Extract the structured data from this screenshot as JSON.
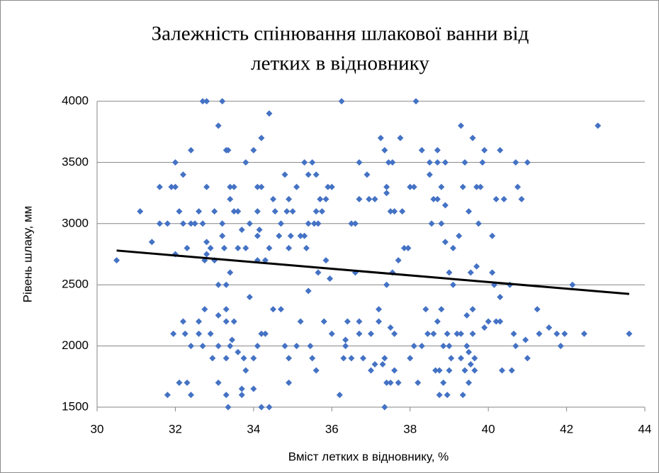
{
  "chart_data": {
    "type": "scatter",
    "title": [
      "Залежність спінювання шлакової ванни від",
      "летких в відновнику"
    ],
    "x_label": "Вміст летких в відновнику, %",
    "y_label": "Рівень шлаку, мм",
    "xlim": [
      30,
      44
    ],
    "xticks": [
      30,
      32,
      34,
      36,
      38,
      40,
      42,
      44
    ],
    "ylim": [
      1500,
      4000
    ],
    "yticks": [
      1500,
      2000,
      2500,
      3000,
      3500,
      4000
    ],
    "grid": true,
    "x": [
      30.5,
      31.1,
      31.4,
      31.6,
      31.6,
      31.8,
      31.8,
      31.9,
      32.0,
      32.0,
      31.95,
      32.0,
      32.1,
      32.1,
      32.2,
      32.2,
      32.3,
      32.2,
      32.25,
      32.3,
      32.4,
      32.4,
      32.4,
      32.4,
      32.5,
      32.6,
      32.6,
      32.6,
      32.7,
      32.7,
      32.75,
      32.8,
      32.7,
      32.8,
      32.8,
      32.8,
      32.75,
      32.9,
      32.9,
      33.0,
      32.95,
      33.0,
      33.1,
      33.1,
      33.1,
      33.1,
      33.1,
      33.2,
      33.2,
      33.2,
      33.25,
      33.3,
      33.3,
      33.3,
      33.35,
      33.4,
      33.4,
      33.3,
      33.4,
      33.4,
      33.45,
      33.5,
      33.35,
      33.3,
      33.3,
      33.5,
      33.5,
      33.6,
      33.6,
      33.6,
      33.7,
      33.7,
      33.7,
      33.75,
      33.8,
      33.8,
      33.8,
      33.9,
      33.9,
      34.0,
      34.0,
      34.0,
      34.1,
      34.1,
      34.1,
      34.1,
      34.15,
      34.1,
      34.2,
      34.2,
      34.2,
      34.2,
      34.3,
      34.3,
      34.4,
      34.4,
      34.4,
      34.5,
      34.5,
      34.55,
      34.7,
      34.65,
      34.7,
      34.8,
      34.8,
      34.9,
      34.9,
      34.85,
      34.95,
      34.9,
      34.9,
      35.0,
      35.1,
      35.1,
      35.2,
      35.2,
      35.3,
      35.3,
      35.35,
      35.4,
      35.4,
      35.4,
      35.5,
      35.45,
      35.55,
      35.5,
      35.6,
      35.65,
      35.6,
      35.7,
      35.65,
      35.6,
      35.75,
      35.8,
      35.85,
      35.9,
      36.0,
      35.85,
      35.95,
      36.0,
      36.2,
      36.25,
      36.3,
      36.35,
      36.35,
      36.4,
      36.5,
      36.5,
      36.6,
      36.6,
      36.7,
      36.7,
      36.7,
      36.7,
      36.8,
      36.9,
      36.95,
      37.0,
      37.0,
      37.1,
      37.2,
      37.2,
      37.1,
      37.25,
      37.3,
      37.35,
      37.35,
      37.35,
      37.4,
      37.4,
      37.4,
      37.4,
      37.45,
      37.5,
      37.5,
      37.5,
      37.55,
      37.55,
      37.6,
      37.6,
      37.6,
      37.7,
      37.75,
      37.7,
      37.8,
      37.85,
      37.95,
      38.0,
      38.0,
      38.1,
      38.1,
      38.15,
      38.2,
      38.3,
      38.3,
      38.4,
      38.45,
      38.5,
      38.5,
      38.55,
      38.6,
      38.6,
      38.65,
      38.7,
      38.7,
      38.7,
      38.7,
      38.75,
      38.75,
      38.8,
      38.8,
      38.8,
      38.85,
      38.85,
      38.9,
      38.9,
      38.9,
      38.95,
      39.0,
      38.95,
      39.0,
      39.0,
      39.05,
      39.1,
      39.1,
      39.2,
      39.25,
      39.3,
      39.3,
      39.3,
      39.35,
      39.35,
      39.4,
      39.4,
      39.45,
      39.45,
      39.5,
      39.5,
      39.5,
      39.55,
      39.55,
      39.6,
      39.6,
      39.6,
      39.65,
      39.65,
      39.7,
      39.7,
      39.75,
      39.8,
      39.85,
      39.9,
      39.9,
      40.0,
      40.1,
      40.1,
      40.15,
      40.2,
      40.2,
      40.3,
      40.3,
      40.3,
      40.35,
      40.4,
      40.55,
      40.6,
      40.65,
      40.7,
      40.7,
      40.75,
      40.85,
      40.95,
      41.0,
      41.0,
      41.25,
      41.3,
      41.55,
      41.75,
      41.85,
      41.95,
      42.15,
      42.45,
      42.8,
      43.6
    ],
    "series": [
      {
        "color": "#4472c4",
        "values": [
          2700,
          3100,
          2850,
          3000,
          3300,
          1600,
          3000,
          3300,
          3300,
          3500,
          2100,
          2750,
          3100,
          1700,
          3000,
          3400,
          2800,
          2200,
          2100,
          1700,
          3600,
          3000,
          2000,
          1600,
          3000,
          3100,
          2100,
          2200,
          3000,
          2000,
          2300,
          4000,
          4000,
          3300,
          2850,
          2750,
          2700,
          2800,
          2100,
          3100,
          1900,
          2700,
          2250,
          2000,
          2500,
          1700,
          3800,
          4000,
          3000,
          2900,
          2800,
          2300,
          2200,
          3600,
          3600,
          3300,
          3200,
          2500,
          2600,
          2000,
          2050,
          2200,
          1500,
          1600,
          1900,
          3300,
          3100,
          3100,
          2800,
          1950,
          1650,
          1600,
          2950,
          1900,
          3500,
          1800,
          2800,
          2400,
          3000,
          3600,
          1900,
          1650,
          3300,
          3100,
          2700,
          2900,
          2950,
          2000,
          3300,
          3700,
          2100,
          1500,
          2100,
          2700,
          3900,
          2800,
          1500,
          2300,
          3200,
          3100,
          3000,
          2900,
          2300,
          2000,
          3400,
          2800,
          3200,
          3100,
          2900,
          1900,
          1700,
          3100,
          3300,
          2000,
          2900,
          2200,
          3500,
          2900,
          2800,
          3400,
          3000,
          2450,
          3500,
          2000,
          3000,
          1900,
          3100,
          3000,
          3400,
          3200,
          2600,
          1800,
          3100,
          2200,
          2700,
          3300,
          3300,
          3200,
          2550,
          2100,
          1600,
          4000,
          1900,
          2050,
          2000,
          2200,
          1900,
          3000,
          3000,
          2600,
          3500,
          3200,
          2200,
          2100,
          1900,
          3400,
          3200,
          1800,
          2100,
          3200,
          2300,
          2200,
          1850,
          3700,
          1850,
          3600,
          1900,
          1500,
          2500,
          3300,
          3250,
          1700,
          3500,
          3100,
          2150,
          1700,
          3500,
          2600,
          3100,
          2100,
          1800,
          2700,
          3700,
          1700,
          3100,
          2800,
          2800,
          3300,
          1900,
          3300,
          2000,
          4000,
          1700,
          3600,
          2000,
          2300,
          2100,
          3500,
          3400,
          3000,
          3200,
          2100,
          1800,
          3500,
          3600,
          3200,
          2200,
          1800,
          1600,
          3300,
          3000,
          2300,
          2000,
          1700,
          3500,
          3150,
          2850,
          2100,
          1800,
          1600,
          2600,
          2000,
          1900,
          2800,
          2500,
          2100,
          2900,
          3800,
          2100,
          1900,
          3300,
          1600,
          3500,
          1800,
          2250,
          2000,
          3100,
          1700,
          1950,
          2600,
          1850,
          3700,
          2300,
          2100,
          1900,
          1800,
          3300,
          2650,
          3000,
          3300,
          3500,
          3600,
          2150,
          2200,
          2600,
          2900,
          2500,
          3200,
          2200,
          3600,
          2400,
          2200,
          1800,
          3200,
          2500,
          1800,
          2100,
          2000,
          3500,
          3300,
          3200,
          2050,
          3500,
          1900,
          2300,
          2100,
          2150,
          2100,
          2000,
          2100,
          2500,
          2100,
          3800,
          2100
        ]
      }
    ],
    "trendline": {
      "color": "#000000",
      "x": [
        30.5,
        43.6
      ],
      "values": [
        2780,
        2425
      ]
    }
  }
}
